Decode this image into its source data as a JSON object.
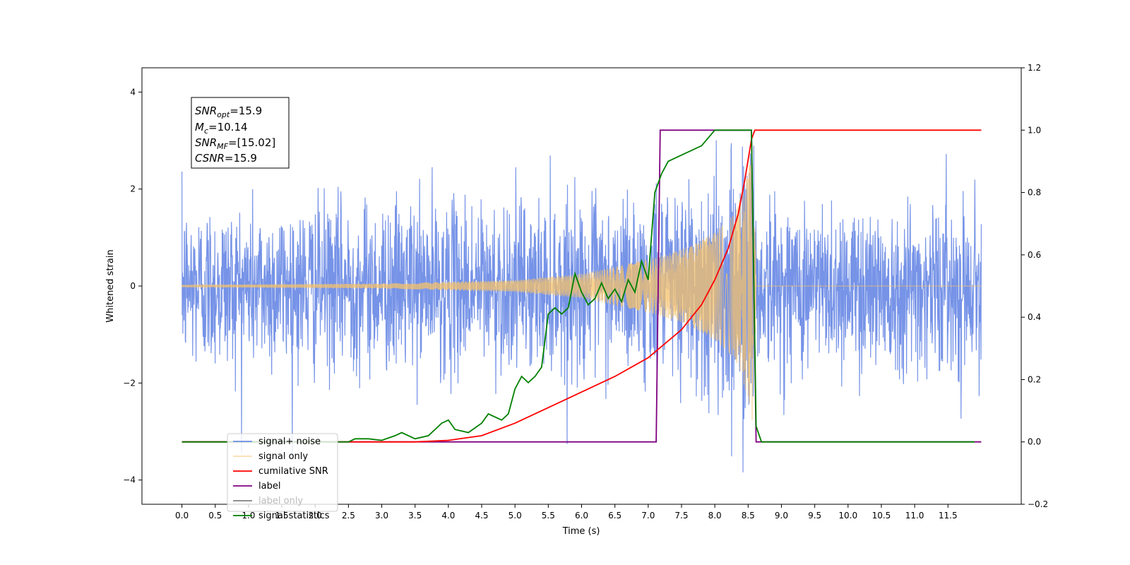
{
  "chart_data": {
    "type": "line",
    "xlabel": "Time (s)",
    "ylabel": "Whitened strain",
    "xlim": [
      -0.6,
      12.6
    ],
    "ylim": [
      -4.5,
      4.5
    ],
    "y2lim": [
      -0.2,
      1.2
    ],
    "grid": false,
    "legend_position": "lower-left",
    "x_ticks": [
      "0.0",
      "0.5",
      "1.0",
      "1.5",
      "2.0",
      "2.5",
      "3.0",
      "3.5",
      "4.0",
      "4.5",
      "5.0",
      "5.5",
      "6.0",
      "6.5",
      "7.0",
      "7.5",
      "8.0",
      "8.5",
      "9.0",
      "9.5",
      "10.0",
      "10.5",
      "11.0",
      "11.5"
    ],
    "x_tick_values": [
      0,
      0.5,
      1,
      1.5,
      2,
      2.5,
      3,
      3.5,
      4,
      4.5,
      5,
      5.5,
      6,
      6.5,
      7,
      7.5,
      8,
      8.5,
      9,
      9.5,
      10,
      10.5,
      11,
      11.5
    ],
    "y_ticks": [
      "−4",
      "−2",
      "0",
      "2",
      "4"
    ],
    "y_tick_values": [
      -4,
      -2,
      0,
      2,
      4
    ],
    "y2_ticks": [
      "−0.2",
      "0.0",
      "0.2",
      "0.4",
      "0.6",
      "0.8",
      "1.0",
      "1.2"
    ],
    "y2_tick_values": [
      -0.2,
      0,
      0.2,
      0.4,
      0.6,
      0.8,
      1.0,
      1.2
    ],
    "annotation": {
      "snr_opt": "=15.9",
      "mc": "=10.14",
      "snr_mf": "=[15.02]",
      "csnr": "=15.9"
    },
    "series": [
      {
        "name": "signal+ noise",
        "color": "#6f8de6",
        "axis": "left",
        "description_values": "noise band roughly ±2.5, peaks near 4",
        "t_start": 0,
        "t_end": 12,
        "amplitude_std": 0.85
      },
      {
        "name": "signal only",
        "color": "#f5c26b",
        "axis": "left",
        "t_merger": 8.6,
        "envelope": [
          [
            0,
            0.02
          ],
          [
            3,
            0.05
          ],
          [
            5,
            0.12
          ],
          [
            6,
            0.25
          ],
          [
            7,
            0.55
          ],
          [
            7.5,
            0.75
          ],
          [
            8,
            1.1
          ],
          [
            8.3,
            1.5
          ],
          [
            8.5,
            2.3
          ],
          [
            8.58,
            3.0
          ],
          [
            8.62,
            0.0
          ],
          [
            12,
            0.0
          ]
        ]
      },
      {
        "name": "cumilative SNR",
        "color": "#ff0000",
        "axis": "right",
        "x": [
          0,
          3.5,
          4.0,
          4.5,
          5.0,
          5.5,
          6.0,
          6.5,
          7.0,
          7.5,
          7.8,
          8.0,
          8.2,
          8.35,
          8.45,
          8.55,
          8.6,
          12.0
        ],
        "values": [
          0.0,
          0.0,
          0.005,
          0.02,
          0.06,
          0.11,
          0.16,
          0.21,
          0.27,
          0.36,
          0.44,
          0.52,
          0.62,
          0.73,
          0.84,
          0.97,
          1.0,
          1.0
        ]
      },
      {
        "name": "label",
        "color": "#800080",
        "axis": "right",
        "x": [
          0,
          7.12,
          7.18,
          8.55,
          8.62,
          12.0
        ],
        "values": [
          0,
          0,
          1,
          1,
          0,
          0
        ]
      },
      {
        "name": "label only",
        "color": "#808080",
        "axis": "right",
        "hidden_in_plot": true
      },
      {
        "name": "signal statistics",
        "color": "#008000",
        "axis": "right",
        "x": [
          0,
          2.5,
          2.6,
          2.8,
          3.0,
          3.2,
          3.3,
          3.5,
          3.7,
          3.9,
          4.0,
          4.1,
          4.3,
          4.5,
          4.6,
          4.8,
          4.9,
          5.0,
          5.1,
          5.2,
          5.3,
          5.4,
          5.5,
          5.6,
          5.7,
          5.8,
          5.9,
          6.0,
          6.1,
          6.2,
          6.3,
          6.4,
          6.5,
          6.6,
          6.7,
          6.8,
          6.9,
          7.0,
          7.1,
          7.2,
          7.3,
          7.5,
          7.8,
          8.0,
          8.55,
          8.62,
          8.7,
          11.9
        ],
        "values": [
          0.0,
          0.0,
          0.01,
          0.01,
          0.005,
          0.02,
          0.03,
          0.01,
          0.02,
          0.06,
          0.07,
          0.04,
          0.03,
          0.06,
          0.09,
          0.07,
          0.09,
          0.17,
          0.21,
          0.19,
          0.21,
          0.24,
          0.41,
          0.43,
          0.41,
          0.43,
          0.54,
          0.48,
          0.44,
          0.46,
          0.51,
          0.46,
          0.49,
          0.45,
          0.52,
          0.48,
          0.58,
          0.52,
          0.8,
          0.86,
          0.9,
          0.92,
          0.95,
          1.0,
          1.0,
          0.05,
          0.0,
          0.0
        ]
      }
    ],
    "legend": [
      {
        "label": "signal+ noise",
        "color": "#6f8de6"
      },
      {
        "label": "signal only",
        "color": "#f5c26b"
      },
      {
        "label": "cumilative SNR",
        "color": "#ff0000"
      },
      {
        "label": "label",
        "color": "#800080"
      },
      {
        "label": "label only",
        "color": "#808080"
      },
      {
        "label": "signal statistics",
        "color": "#008000"
      }
    ]
  }
}
